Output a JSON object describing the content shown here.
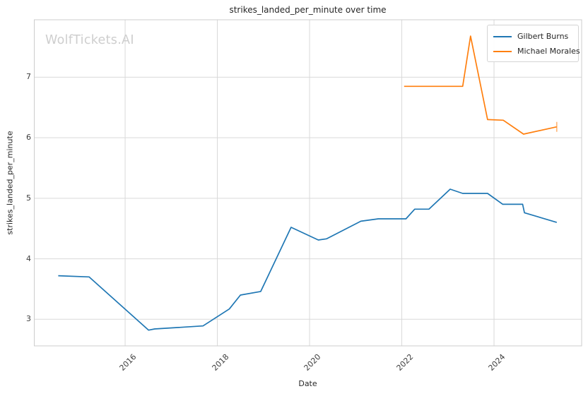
{
  "watermark": "WolfTickets.AI",
  "chart_data": {
    "type": "line",
    "title": "strikes_landed_per_minute over time",
    "xlabel": "Date",
    "ylabel": "strikes_landed_per_minute",
    "xlim": [
      2014.03,
      2025.9
    ],
    "ylim": [
      2.56,
      7.95
    ],
    "xticks": [
      2016,
      2018,
      2020,
      2022,
      2024
    ],
    "yticks": [
      3,
      4,
      5,
      6,
      7
    ],
    "grid": true,
    "grid_color": "#d9d9d9",
    "spine_color": "#cccccc",
    "legend_position": "upper-right",
    "series": [
      {
        "name": "Gilbert Burns",
        "color": "#1f77b4",
        "end_cap": false,
        "points": [
          [
            2014.55,
            3.72
          ],
          [
            2015.22,
            3.7
          ],
          [
            2016.51,
            2.82
          ],
          [
            2016.64,
            2.84
          ],
          [
            2017.69,
            2.89
          ],
          [
            2018.26,
            3.17
          ],
          [
            2018.5,
            3.4
          ],
          [
            2018.94,
            3.46
          ],
          [
            2019.6,
            4.52
          ],
          [
            2020.19,
            4.31
          ],
          [
            2020.37,
            4.33
          ],
          [
            2021.11,
            4.62
          ],
          [
            2021.49,
            4.66
          ],
          [
            2022.09,
            4.66
          ],
          [
            2022.28,
            4.82
          ],
          [
            2022.59,
            4.82
          ],
          [
            2023.05,
            5.15
          ],
          [
            2023.32,
            5.08
          ],
          [
            2023.86,
            5.08
          ],
          [
            2024.19,
            4.9
          ],
          [
            2024.62,
            4.9
          ],
          [
            2024.66,
            4.76
          ],
          [
            2025.36,
            4.6
          ]
        ]
      },
      {
        "name": "Michael Morales",
        "color": "#ff7f0e",
        "end_cap": true,
        "points": [
          [
            2022.05,
            6.85
          ],
          [
            2023.32,
            6.85
          ],
          [
            2023.49,
            7.68
          ],
          [
            2023.86,
            6.3
          ],
          [
            2024.2,
            6.29
          ],
          [
            2024.64,
            6.06
          ],
          [
            2025.36,
            6.18
          ]
        ]
      }
    ]
  }
}
